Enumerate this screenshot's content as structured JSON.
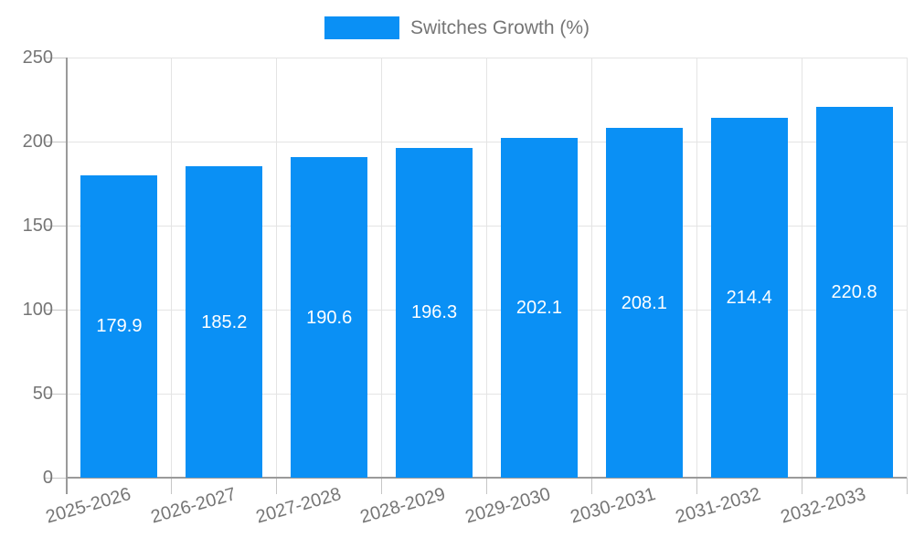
{
  "chart_data": {
    "type": "bar",
    "title": "",
    "legend": "Switches Growth (%)",
    "categories": [
      "2025-2026",
      "2026-2027",
      "2027-2028",
      "2028-2029",
      "2029-2030",
      "2030-2031",
      "2031-2032",
      "2032-2033"
    ],
    "values": [
      179.9,
      185.2,
      190.6,
      196.3,
      202.1,
      208.1,
      214.4,
      220.8
    ],
    "value_labels": [
      "179.9",
      "185.2",
      "190.6",
      "196.3",
      "202.1",
      "208.1",
      "214.4",
      "220.8"
    ],
    "xlabel": "",
    "ylabel": "",
    "ylim": [
      0,
      250
    ],
    "yticks": [
      0,
      50,
      100,
      150,
      200,
      250
    ],
    "grid": true,
    "legend_position": "top-center",
    "x_label_rotation_deg": -16,
    "colors": {
      "bar": "#0A90F5",
      "value_label": "#ffffff",
      "axis_line": "#9a9a9a",
      "gridline": "#e4e4e4",
      "tick": "#c6c6c6",
      "text": "#757575"
    }
  }
}
